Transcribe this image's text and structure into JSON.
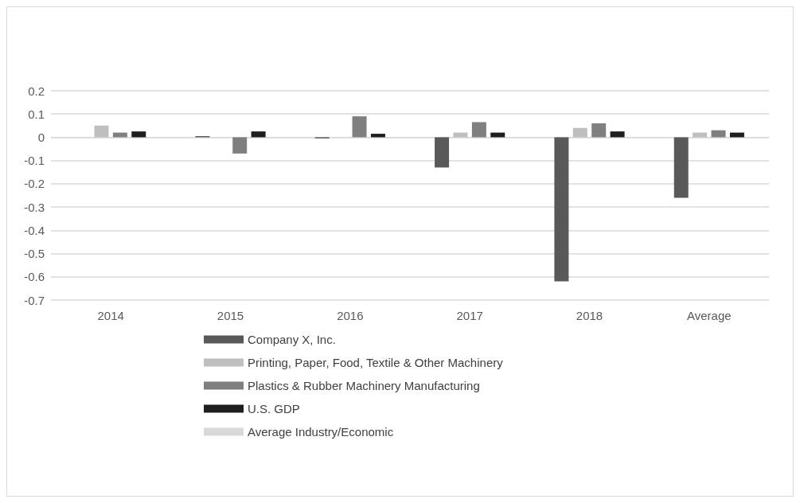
{
  "chart_data": {
    "type": "bar",
    "categories": [
      "2014",
      "2015",
      "2016",
      "2017",
      "2018",
      "Average"
    ],
    "series": [
      {
        "name": "Company X, Inc.",
        "color": "#595959",
        "values": [
          0,
          0.005,
          -0.005,
          -0.13,
          -0.62,
          -0.26
        ]
      },
      {
        "name": "Printing, Paper, Food, Textile & Other Machinery",
        "color": "#bfbfbf",
        "values": [
          0.05,
          0,
          0,
          0.02,
          0.04,
          0.02
        ]
      },
      {
        "name": "Plastics & Rubber Machinery Manufacturing",
        "color": "#7f7f7f",
        "values": [
          0.02,
          -0.07,
          0.09,
          0.065,
          0.06,
          0.03
        ]
      },
      {
        "name": "U.S. GDP",
        "color": "#1f1f1f",
        "values": [
          0.025,
          0.025,
          0.015,
          0.02,
          0.025,
          0.02
        ]
      },
      {
        "name": "Average Industry/Economic",
        "type": "line",
        "color": "#d9d9d9",
        "values": [
          null,
          null,
          null,
          null,
          null,
          null
        ]
      }
    ],
    "ylim": [
      -0.7,
      0.2
    ],
    "yticks": [
      -0.7,
      -0.6,
      -0.5,
      -0.4,
      -0.3,
      -0.2,
      -0.1,
      0,
      0.1,
      0.2
    ],
    "grid": "y",
    "legend": "bottom"
  }
}
